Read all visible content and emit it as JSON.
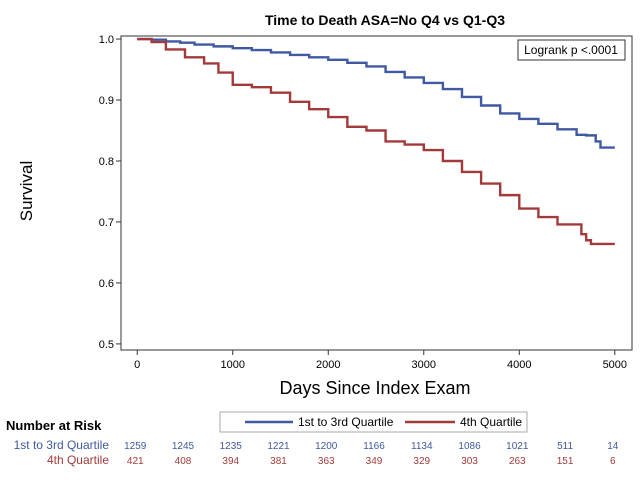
{
  "chart_data": {
    "type": "line",
    "title": "Time to Death ASA=No Q4 vs Q1-Q3",
    "xlabel": "Days Since Index Exam",
    "ylabel": "Survival",
    "xlim": [
      -170,
      5180
    ],
    "ylim": [
      0.49,
      1.005
    ],
    "xticks": [
      "0",
      "1000",
      "2000",
      "3000",
      "4000",
      "5000"
    ],
    "yticks": [
      "0.5",
      "0.6",
      "0.7",
      "0.8",
      "0.9",
      "1.0"
    ],
    "annotation": "Logrank p <.0001",
    "legend_position": "bottom",
    "series": [
      {
        "name": "1st to 3rd Quartile",
        "color": "#3f59a2",
        "x": [
          0,
          150,
          300,
          450,
          600,
          800,
          1000,
          1200,
          1400,
          1600,
          1800,
          2000,
          2200,
          2400,
          2600,
          2800,
          3000,
          3200,
          3400,
          3600,
          3800,
          4000,
          4200,
          4400,
          4600,
          4700,
          4800,
          4850,
          5000
        ],
        "y": [
          1.0,
          0.999,
          0.996,
          0.994,
          0.991,
          0.988,
          0.985,
          0.982,
          0.978,
          0.974,
          0.97,
          0.966,
          0.961,
          0.955,
          0.946,
          0.937,
          0.928,
          0.918,
          0.905,
          0.891,
          0.878,
          0.869,
          0.861,
          0.852,
          0.843,
          0.842,
          0.832,
          0.822,
          0.822
        ]
      },
      {
        "name": "4th Quartile",
        "color": "#a33a3a",
        "x": [
          0,
          150,
          300,
          500,
          700,
          850,
          1000,
          1200,
          1400,
          1600,
          1800,
          2000,
          2200,
          2400,
          2600,
          2800,
          3000,
          3200,
          3400,
          3600,
          3800,
          4000,
          4200,
          4400,
          4600,
          4650,
          4700,
          4750,
          5000
        ],
        "y": [
          1.0,
          0.995,
          0.983,
          0.97,
          0.96,
          0.945,
          0.925,
          0.921,
          0.912,
          0.897,
          0.885,
          0.872,
          0.856,
          0.85,
          0.832,
          0.827,
          0.818,
          0.8,
          0.782,
          0.763,
          0.744,
          0.722,
          0.708,
          0.696,
          0.696,
          0.68,
          0.67,
          0.664,
          0.664
        ]
      }
    ],
    "number_at_risk": {
      "title": "Number at Risk",
      "x": [
        0,
        500,
        1000,
        1500,
        2000,
        2500,
        3000,
        3500,
        4000,
        4500,
        5000
      ],
      "rows": [
        {
          "name": "1st to 3rd Quartile",
          "color": "#3f59a2",
          "values": [
            "1259",
            "1245",
            "1235",
            "1221",
            "1200",
            "1166",
            "1134",
            "1086",
            "1021",
            "511",
            "14"
          ]
        },
        {
          "name": "4th Quartile",
          "color": "#a33a3a",
          "values": [
            "421",
            "408",
            "394",
            "381",
            "363",
            "349",
            "329",
            "303",
            "263",
            "151",
            "6"
          ]
        }
      ]
    }
  }
}
